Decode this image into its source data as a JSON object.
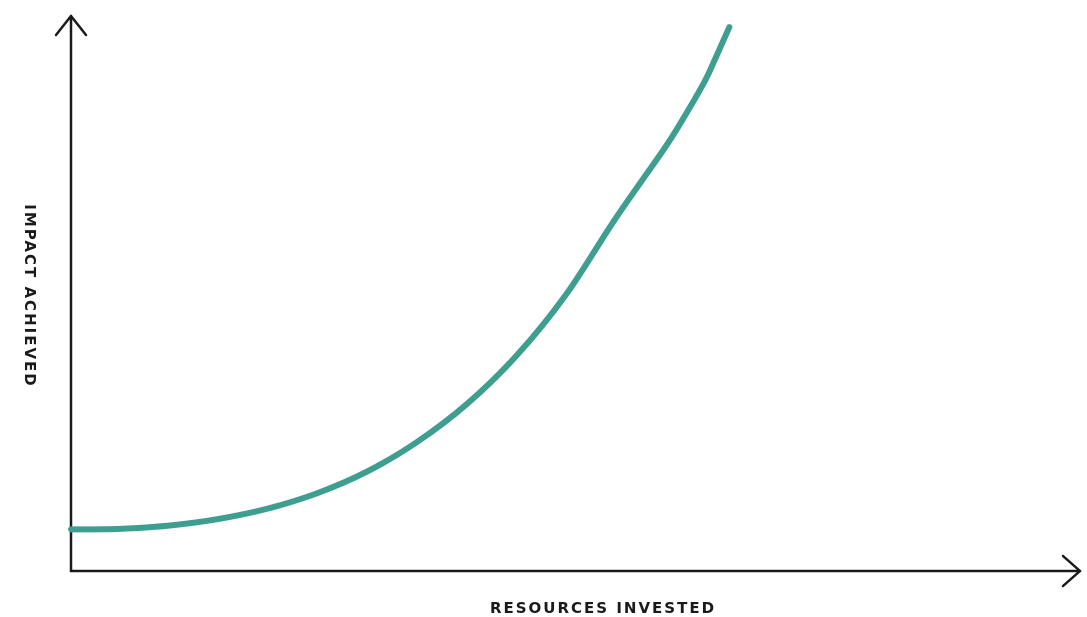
{
  "chart_data": {
    "type": "line",
    "title": "",
    "xlabel": "RESOURCES INVESTED",
    "ylabel": "IMPACT ACHIEVED",
    "xlim": [
      0,
      100
    ],
    "ylim": [
      0,
      100
    ],
    "grid": false,
    "legend": "none",
    "axis_ticks": false,
    "color": "#3e9e90",
    "series": [
      {
        "x": [
          0,
          5,
          10,
          15,
          20,
          25,
          30,
          35,
          40,
          45,
          50,
          55,
          60,
          62,
          64,
          65,
          66,
          66.5
        ],
        "y": [
          7.5,
          7.6,
          8.2,
          9.4,
          11.3,
          14.1,
          18.0,
          23.3,
          30.1,
          38.8,
          49.8,
          63.5,
          76.3,
          82.0,
          88.2,
          92.0,
          96.0,
          98.0
        ]
      }
    ]
  }
}
